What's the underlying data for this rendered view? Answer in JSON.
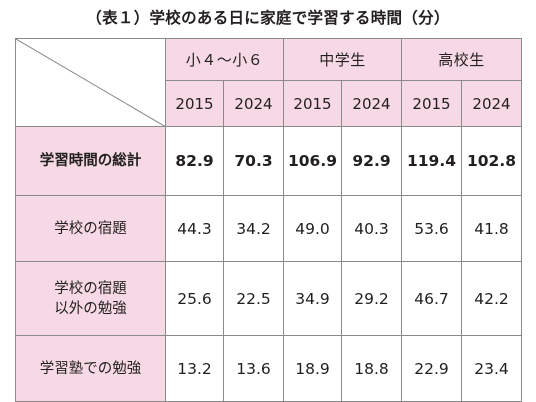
{
  "caption": "（表１）学校のある日に家庭で学習する時間（分）",
  "header": {
    "groups": [
      "小４〜小６",
      "中学生",
      "高校生"
    ],
    "years": [
      "2015",
      "2024",
      "2015",
      "2024",
      "2015",
      "2024"
    ]
  },
  "rows": [
    {
      "label_lines": [
        "学習時間の総計"
      ],
      "values": [
        "82.9",
        "70.3",
        "106.9",
        "92.9",
        "119.4",
        "102.8"
      ]
    },
    {
      "label_lines": [
        "学校の宿題"
      ],
      "values": [
        "44.3",
        "34.2",
        "49.0",
        "40.3",
        "53.6",
        "41.8"
      ]
    },
    {
      "label_lines": [
        "学校の宿題",
        "以外の勉強"
      ],
      "values": [
        "25.6",
        "22.5",
        "34.9",
        "29.2",
        "46.7",
        "42.2"
      ]
    },
    {
      "label_lines": [
        "学習塾での勉強"
      ],
      "values": [
        "13.2",
        "13.6",
        "18.9",
        "18.8",
        "22.9",
        "23.4"
      ]
    }
  ],
  "colors": {
    "header_bg": "#f6d9e4",
    "border": "#8a8a8a",
    "text": "#231f20"
  }
}
